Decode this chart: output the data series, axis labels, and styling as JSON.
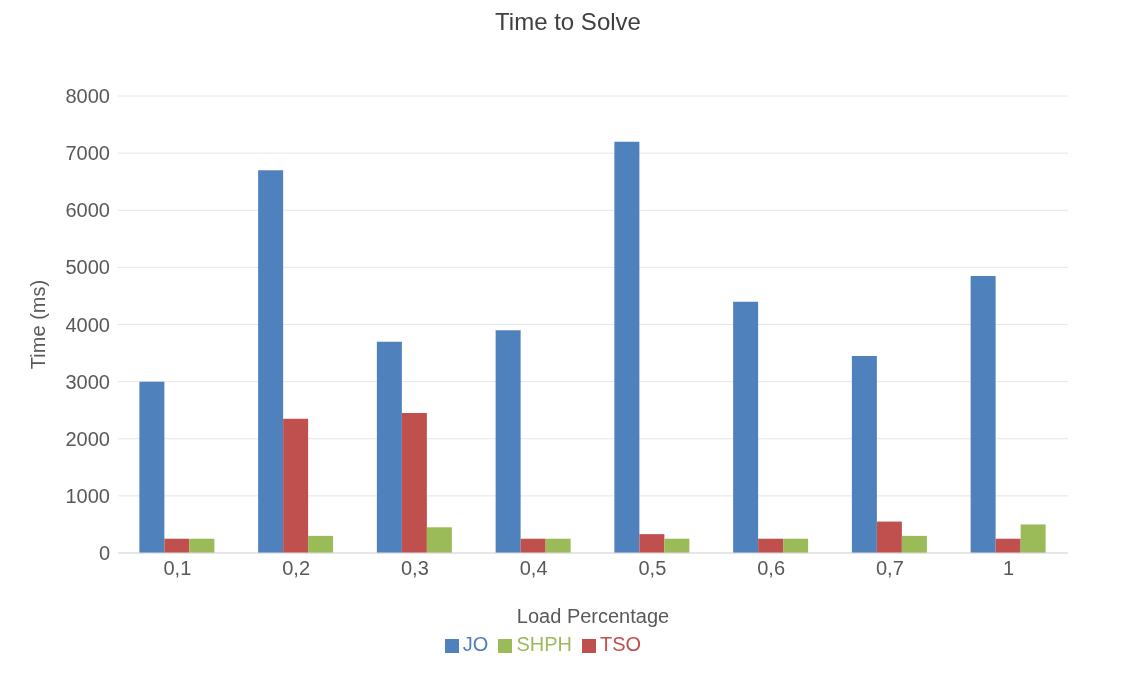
{
  "chart_data": {
    "type": "bar",
    "title": "Time to Solve",
    "xlabel": "Load Percentage",
    "ylabel": "Time (ms)",
    "categories": [
      "0,1",
      "0,2",
      "0,3",
      "0,4",
      "0,5",
      "0,6",
      "0,7",
      "1"
    ],
    "series": [
      {
        "name": "JO",
        "color": "#4f81bd",
        "values": [
          3000,
          6700,
          3700,
          3900,
          7200,
          4400,
          3450,
          4850
        ]
      },
      {
        "name": "TSO",
        "color": "#c0504d",
        "values": [
          250,
          2350,
          2450,
          250,
          330,
          250,
          550,
          250
        ]
      },
      {
        "name": "SHPH",
        "color": "#9bbb59",
        "values": [
          250,
          300,
          450,
          250,
          250,
          250,
          300,
          500
        ]
      }
    ],
    "ylim": [
      0,
      8000
    ],
    "yticks": [
      0,
      1000,
      2000,
      3000,
      4000,
      5000,
      6000,
      7000,
      8000
    ],
    "grid": "y",
    "legend": "bottom"
  }
}
